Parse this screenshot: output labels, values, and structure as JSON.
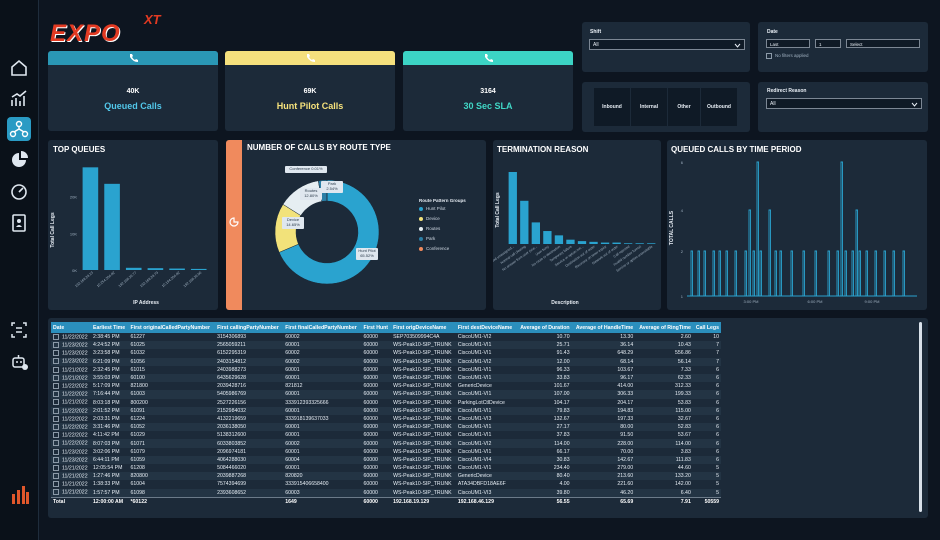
{
  "logo": {
    "text": "EXPO",
    "superscript": "XT"
  },
  "nav": [
    "home-icon",
    "trend-icon",
    "network-icon",
    "pie-icon",
    "gauge-icon",
    "contact-icon",
    "scan-icon",
    "robot-icon"
  ],
  "kpis": [
    {
      "value": "40K",
      "label": "Queued Calls",
      "band": "#2a97b5",
      "label_color": "#52c7ea"
    },
    {
      "value": "69K",
      "label": "Hunt Pilot Calls",
      "band": "#f5e07d",
      "label_color": "#f6e27c"
    },
    {
      "value": "3164",
      "label": "30 Sec SLA",
      "band": "#3cd4c5",
      "label_color": "#40d7c6"
    }
  ],
  "slicers": {
    "shift_label": "Shift",
    "shift_value": "All",
    "date_label": "Date",
    "date_unit": "Last",
    "date_count": "1",
    "date_period": "Select",
    "date_note": "No filters applied",
    "redirect_label": "Redirect Reason",
    "redirect_value": "All",
    "types": [
      "Inbound",
      "Internal",
      "Other",
      "Outbound"
    ]
  },
  "top_queues": {
    "title": "TOP QUEUES",
    "ylabel": "Total Call Legs",
    "xlabel": "IP Address",
    "chart_data": {
      "type": "bar",
      "categories": [
        "192.168.29.13",
        "10.254.204.82",
        "192.168.29.77",
        "192.168.29.79",
        "10.194.204.82",
        "192.168.29.90"
      ],
      "values": [
        28000,
        23500,
        600,
        500,
        400,
        300
      ],
      "yticks": [
        "20K",
        "10K",
        "0K"
      ],
      "ylim": [
        0,
        30000
      ]
    }
  },
  "route_type": {
    "title": "NUMBER OF CALLS BY ROUTE TYPE",
    "legend_title": "Route Pattern Groups",
    "chart_data": {
      "type": "pie",
      "labels": [
        "Hunt Pilot",
        "Device",
        "Routes",
        "Park",
        "Conference"
      ],
      "values": [
        65.52,
        14.65,
        12.8,
        2.54,
        0.01
      ],
      "colors": [
        "#2aa3cf",
        "#f2e27a",
        "#e6eef2",
        "#2b7fa6",
        "#f08a5d"
      ],
      "slice_labels": [
        "Hunt Pilot\n65.52%",
        "Device\n14.65%",
        "Routes\n12.80%",
        "Park\n2.54%",
        "Conference 0.01%"
      ]
    }
  },
  "termination": {
    "title": "TERMINATION REASON",
    "ylabel": "Total Call Legs",
    "xlabel": "Description",
    "chart_data": {
      "type": "bar",
      "categories": [
        "Unallocated unassigned...",
        "Normal call clearing",
        "No answer from user (use...",
        "User busy",
        "No route to destination",
        "Temporary failure",
        "Service or option not...",
        "Destination out of order",
        "Recovery on timer expiry",
        "Network out of order",
        "Call rejected",
        "Invalid number format",
        "Service or option unavailable"
      ],
      "values": [
        100,
        60,
        30,
        18,
        12,
        6,
        4,
        3,
        2,
        2,
        1,
        1,
        1
      ]
    }
  },
  "queued_time": {
    "title": "QUEUED CALLS BY TIME PERIOD",
    "ylabel": "TOTAL CALLS",
    "chart_data": {
      "type": "line",
      "xticks": [
        "3:00 PM",
        "6:00 PM",
        "9:00 PM"
      ],
      "yticks": [
        "6",
        "4",
        "2",
        "1"
      ]
    }
  },
  "table": {
    "headers": [
      "Date",
      "Earliest Time",
      "First originalCalledPartyNumber",
      "First callingPartyNumber",
      "First finalCalledPartyNumber",
      "First Hunt",
      "First origDeviceName",
      "First destDeviceName",
      "Average of Duration",
      "Average of HandleTime",
      "Average of RingTime",
      "Call Legs"
    ],
    "rows": [
      [
        "11/22/2022",
        "2:38:45 PM",
        "61227",
        "3154306893",
        "60002",
        "60000",
        "SEP703509994C4A",
        "CiscoUM1-VI2",
        "10.70",
        "13.30",
        "2.60",
        "10"
      ],
      [
        "11/23/2022",
        "4:24:52 PM",
        "61025",
        "2565059211",
        "60001",
        "60000",
        "WS-Peak10-SIP_TRUNK",
        "CiscoUM1-VI1",
        "25.71",
        "36.14",
        "10.43",
        "7"
      ],
      [
        "11/23/2022",
        "3:23:58 PM",
        "61032",
        "6152295319",
        "60002",
        "60000",
        "WS-Peak10-SIP_TRUNK",
        "CiscoUM1-VI1",
        "91.43",
        "648.29",
        "556.86",
        "7"
      ],
      [
        "11/23/2022",
        "6:21:09 PM",
        "61056",
        "2403154812",
        "60002",
        "60000",
        "WS-Peak10-SIP_TRUNK",
        "CiscoUM1-VI2",
        "12.00",
        "68.14",
        "56.14",
        "7"
      ],
      [
        "11/21/2022",
        "2:32:45 PM",
        "61015",
        "2403988273",
        "60001",
        "60000",
        "WS-Peak10-SIP_TRUNK",
        "CiscoUM1-VI1",
        "96.33",
        "103.67",
        "7.33",
        "6"
      ],
      [
        "11/21/2022",
        "3:55:03 PM",
        "60100",
        "6435629628",
        "60001",
        "60000",
        "WS-Peak10-SIP_TRUNK",
        "CiscoUM1-VI1",
        "33.83",
        "96.17",
        "62.33",
        "6"
      ],
      [
        "11/22/2022",
        "5:17:09 PM",
        "821800",
        "2039428716",
        "821812",
        "60000",
        "WS-Peak10-SIP_TRUNK",
        "GenericDevice",
        "101.67",
        "414.00",
        "312.33",
        "6"
      ],
      [
        "11/22/2022",
        "7:16:44 PM",
        "61003",
        "5405986769",
        "60001",
        "60000",
        "WS-Peak10-SIP_TRUNK",
        "CiscoUM1-VI1",
        "107.00",
        "306.33",
        "199.33",
        "6"
      ],
      [
        "11/21/2022",
        "8:03:18 PM",
        "800200",
        "2527226156",
        "333912393325666",
        "60000",
        "WS-Peak10-SIP_TRUNK",
        "ParkingLotCtlDevice",
        "104.17",
        "204.17",
        "53.83",
        "6"
      ],
      [
        "11/22/2022",
        "2:01:52 PM",
        "61091",
        "2152984032",
        "60001",
        "60000",
        "WS-Peak10-SIP_TRUNK",
        "CiscoUM1-VI1",
        "79.83",
        "194.83",
        "115.00",
        "6"
      ],
      [
        "11/22/2022",
        "2:03:31 PM",
        "61224",
        "4132219659",
        "333918139637033",
        "60000",
        "WS-Peak10-SIP_TRUNK",
        "CiscoUM1-VI3",
        "132.67",
        "197.33",
        "32.67",
        "6"
      ],
      [
        "11/22/2022",
        "3:31:46 PM",
        "61052",
        "2036138050",
        "60001",
        "60000",
        "WS-Peak10-SIP_TRUNK",
        "CiscoUM1-VI1",
        "27.17",
        "80.00",
        "52.83",
        "6"
      ],
      [
        "11/22/2022",
        "4:11:42 PM",
        "61029",
        "5138312600",
        "60001",
        "60000",
        "WS-Peak10-SIP_TRUNK",
        "CiscoUM1-VI1",
        "37.83",
        "91.50",
        "53.67",
        "6"
      ],
      [
        "11/22/2022",
        "8:07:03 PM",
        "61071",
        "6033803852",
        "60002",
        "60000",
        "WS-Peak10-SIP_TRUNK",
        "CiscoUM1-VI2",
        "114.00",
        "228.00",
        "114.00",
        "6"
      ],
      [
        "11/23/2022",
        "3:02:06 PM",
        "61079",
        "2096974181",
        "60001",
        "60000",
        "WS-Peak10-SIP_TRUNK",
        "CiscoUM1-VI1",
        "66.17",
        "70.00",
        "3.83",
        "6"
      ],
      [
        "11/23/2022",
        "6:44:11 PM",
        "61059",
        "4064288030",
        "60004",
        "60000",
        "WS-Peak10-SIP_TRUNK",
        "CiscoUM1-VI4",
        "30.83",
        "142.67",
        "111.83",
        "6"
      ],
      [
        "11/21/2022",
        "12:05:54 PM",
        "61208",
        "5084466020",
        "60001",
        "60000",
        "WS-Peak10-SIP_TRUNK",
        "CiscoUM1-VI1",
        "234.40",
        "279.00",
        "44.60",
        "5"
      ],
      [
        "11/21/2022",
        "1:27:46 PM",
        "820800",
        "2039887268",
        "820820",
        "60000",
        "WS-Peak10-SIP_TRUNK",
        "GenericDevice",
        "80.40",
        "213.60",
        "133.20",
        "5"
      ],
      [
        "11/21/2022",
        "1:38:33 PM",
        "61004",
        "7574394699",
        "333915406658400",
        "60000",
        "WS-Peak10-SIP_TRUNK",
        "ATA34DBFD18AE6F",
        "4.00",
        "221.60",
        "142.00",
        "5"
      ],
      [
        "11/21/2022",
        "1:57:57 PM",
        "61098",
        "2393608652",
        "60003",
        "60000",
        "WS-Peak10-SIP_TRUNK",
        "CiscoUM1-VI3",
        "39.80",
        "46.20",
        "6.40",
        "5"
      ]
    ],
    "total": [
      "Total",
      "12:00:00 AM",
      "*60122",
      "",
      "1649",
      "60000",
      "192.168.19.129",
      "192.168.46.129",
      "56.55",
      "65.69",
      "7.91",
      "50559"
    ]
  }
}
